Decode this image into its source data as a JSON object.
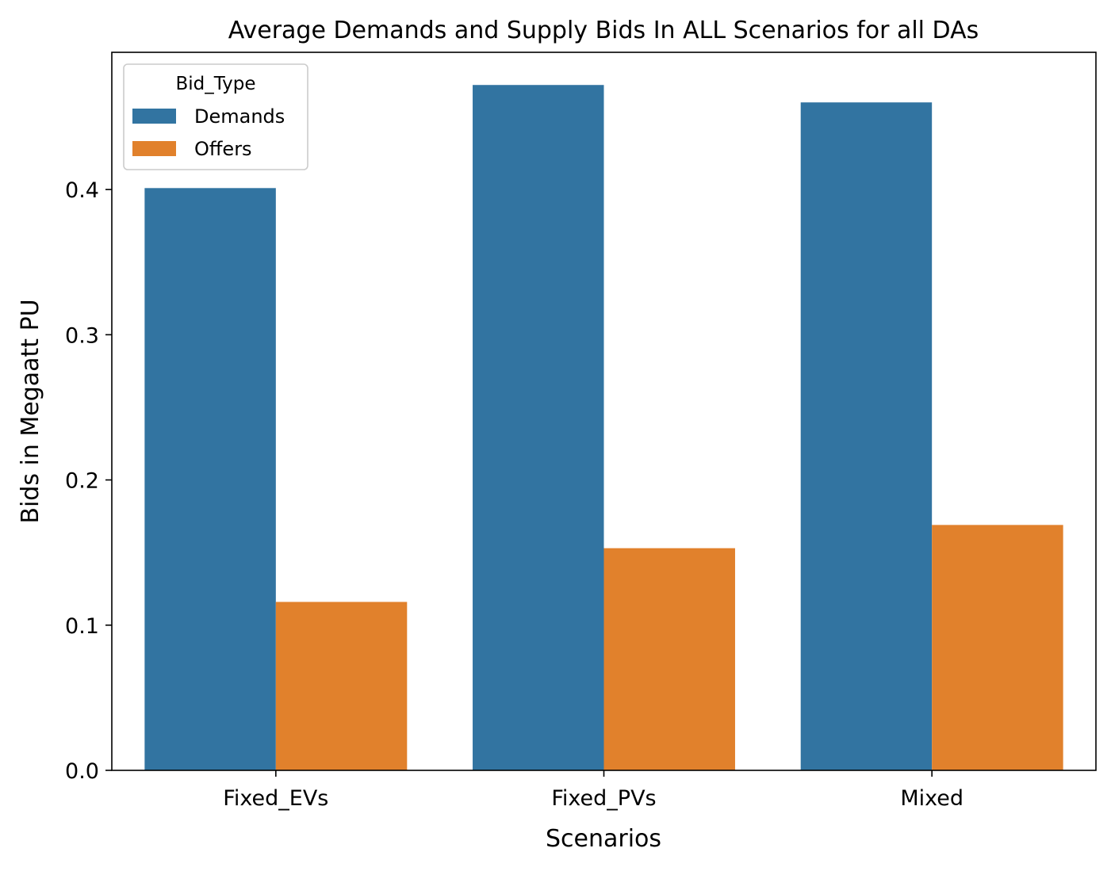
{
  "chart_data": {
    "type": "bar",
    "title": "Average Demands and Supply Bids In ALL Scenarios for all DAs",
    "xlabel": "Scenarios",
    "ylabel": "Bids in Megaatt PU",
    "categories": [
      "Fixed_EVs",
      "Fixed_PVs",
      "Mixed"
    ],
    "series": [
      {
        "name": "Demands",
        "values": [
          0.401,
          0.472,
          0.46
        ],
        "color": "#3274a1"
      },
      {
        "name": "Offers",
        "values": [
          0.116,
          0.153,
          0.169
        ],
        "color": "#e1812c"
      }
    ],
    "ylim": [
      0,
      0.4945
    ],
    "yticks": [
      "0.0",
      "0.1",
      "0.2",
      "0.3",
      "0.4"
    ],
    "ytick_values": [
      0,
      0.1,
      0.2,
      0.3,
      0.4
    ],
    "legend": {
      "title": "Bid_Type",
      "position": "top-left"
    },
    "grid": false
  }
}
